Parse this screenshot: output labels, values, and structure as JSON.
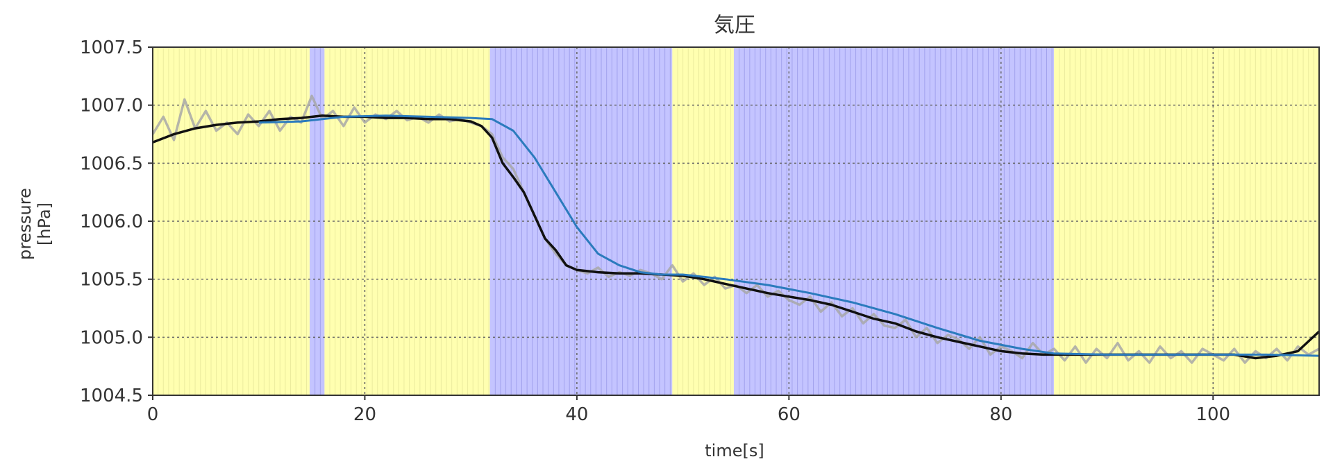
{
  "chart_data": {
    "type": "line",
    "title": "気圧",
    "xlabel": "time[s]",
    "ylabel_lines": [
      "pressure",
      "[hPa]"
    ],
    "xlim": [
      0,
      110
    ],
    "ylim": [
      1004.5,
      1007.5
    ],
    "xticks": [
      0,
      20,
      40,
      60,
      80,
      100
    ],
    "xtick_labels": [
      "0",
      "20",
      "40",
      "60",
      "80",
      "100"
    ],
    "yticks": [
      1004.5,
      1005.0,
      1005.5,
      1006.0,
      1006.5,
      1007.0,
      1007.5
    ],
    "ytick_labels": [
      "1004.5",
      "1005.0",
      "1005.5",
      "1006.0",
      "1006.5",
      "1007.0",
      "1007.5"
    ],
    "grid": true,
    "colors": {
      "band_yellow": "#ffffb0",
      "band_blue": "#c4c4ff",
      "raw": "#a8a8a8",
      "smoothed": "#111111",
      "trend": "#2b7bbd",
      "grid": "#666666"
    },
    "background_bands": [
      {
        "x0": 0,
        "x1": 14.8,
        "color": "yellow"
      },
      {
        "x0": 14.8,
        "x1": 16.2,
        "color": "blue"
      },
      {
        "x0": 16.2,
        "x1": 31.8,
        "color": "yellow"
      },
      {
        "x0": 31.8,
        "x1": 49.0,
        "color": "blue"
      },
      {
        "x0": 49.0,
        "x1": 54.8,
        "color": "yellow"
      },
      {
        "x0": 54.8,
        "x1": 85.0,
        "color": "blue"
      },
      {
        "x0": 85.0,
        "x1": 110.0,
        "color": "yellow"
      }
    ],
    "series": [
      {
        "role": "raw",
        "x": [
          0,
          1,
          2,
          3,
          4,
          5,
          6,
          7,
          8,
          9,
          10,
          11,
          12,
          13,
          14,
          15,
          16,
          17,
          18,
          19,
          20,
          21,
          22,
          23,
          24,
          25,
          26,
          27,
          28,
          29,
          30,
          31,
          32,
          33,
          34,
          35,
          36,
          37,
          38,
          39,
          40,
          41,
          42,
          43,
          44,
          45,
          46,
          47,
          48,
          49,
          50,
          51,
          52,
          53,
          54,
          55,
          56,
          57,
          58,
          59,
          60,
          61,
          62,
          63,
          64,
          65,
          66,
          67,
          68,
          69,
          70,
          71,
          72,
          73,
          74,
          75,
          76,
          77,
          78,
          79,
          80,
          81,
          82,
          83,
          84,
          85,
          86,
          87,
          88,
          89,
          90,
          91,
          92,
          93,
          94,
          95,
          96,
          97,
          98,
          99,
          100,
          101,
          102,
          103,
          104,
          105,
          106,
          107,
          108,
          109,
          110
        ],
        "y": [
          1006.75,
          1006.9,
          1006.7,
          1007.05,
          1006.8,
          1006.95,
          1006.78,
          1006.85,
          1006.75,
          1006.92,
          1006.82,
          1006.95,
          1006.78,
          1006.9,
          1006.85,
          1007.08,
          1006.88,
          1006.95,
          1006.82,
          1006.98,
          1006.85,
          1006.92,
          1006.88,
          1006.95,
          1006.87,
          1006.9,
          1006.85,
          1006.92,
          1006.86,
          1006.88,
          1006.85,
          1006.82,
          1006.75,
          1006.55,
          1006.45,
          1006.25,
          1006.05,
          1005.85,
          1005.72,
          1005.62,
          1005.58,
          1005.55,
          1005.6,
          1005.52,
          1005.56,
          1005.53,
          1005.58,
          1005.55,
          1005.5,
          1005.62,
          1005.48,
          1005.55,
          1005.45,
          1005.52,
          1005.42,
          1005.45,
          1005.38,
          1005.45,
          1005.35,
          1005.4,
          1005.32,
          1005.28,
          1005.35,
          1005.22,
          1005.3,
          1005.18,
          1005.25,
          1005.12,
          1005.2,
          1005.1,
          1005.08,
          1005.15,
          1005.0,
          1005.08,
          1004.95,
          1005.02,
          1004.98,
          1004.9,
          1005.0,
          1004.85,
          1004.92,
          1004.88,
          1004.82,
          1004.95,
          1004.85,
          1004.9,
          1004.8,
          1004.92,
          1004.78,
          1004.9,
          1004.82,
          1004.95,
          1004.8,
          1004.88,
          1004.78,
          1004.92,
          1004.82,
          1004.88,
          1004.78,
          1004.9,
          1004.85,
          1004.8,
          1004.9,
          1004.78,
          1004.88,
          1004.82,
          1004.9,
          1004.8,
          1004.92,
          1004.85,
          1004.9
        ]
      },
      {
        "role": "smoothed",
        "x": [
          0,
          2,
          4,
          6,
          8,
          10,
          12,
          14,
          16,
          18,
          20,
          22,
          24,
          26,
          28,
          30,
          31,
          32,
          33,
          34,
          35,
          36,
          37,
          38,
          39,
          40,
          42,
          44,
          46,
          48,
          50,
          52,
          54,
          56,
          58,
          60,
          62,
          64,
          66,
          68,
          70,
          72,
          74,
          76,
          78,
          80,
          82,
          84,
          86,
          88,
          90,
          92,
          94,
          96,
          98,
          100,
          102,
          104,
          106,
          108,
          110
        ],
        "y": [
          1006.68,
          1006.75,
          1006.8,
          1006.83,
          1006.85,
          1006.86,
          1006.88,
          1006.89,
          1006.91,
          1006.9,
          1006.9,
          1006.89,
          1006.89,
          1006.88,
          1006.88,
          1006.86,
          1006.82,
          1006.72,
          1006.5,
          1006.38,
          1006.25,
          1006.05,
          1005.85,
          1005.75,
          1005.62,
          1005.58,
          1005.56,
          1005.55,
          1005.55,
          1005.54,
          1005.53,
          1005.5,
          1005.46,
          1005.42,
          1005.38,
          1005.35,
          1005.32,
          1005.28,
          1005.22,
          1005.16,
          1005.12,
          1005.05,
          1005.0,
          1004.96,
          1004.92,
          1004.88,
          1004.86,
          1004.85,
          1004.85,
          1004.85,
          1004.85,
          1004.85,
          1004.85,
          1004.85,
          1004.85,
          1004.85,
          1004.85,
          1004.82,
          1004.84,
          1004.88,
          1005.05
        ]
      },
      {
        "role": "trend",
        "x": [
          10,
          14,
          18,
          22,
          26,
          30,
          32,
          34,
          36,
          38,
          40,
          42,
          44,
          46,
          48,
          50,
          54,
          58,
          62,
          66,
          70,
          74,
          78,
          82,
          85,
          90,
          95,
          100,
          105,
          110
        ],
        "y": [
          1006.85,
          1006.86,
          1006.9,
          1006.91,
          1006.9,
          1006.89,
          1006.88,
          1006.78,
          1006.55,
          1006.25,
          1005.95,
          1005.72,
          1005.62,
          1005.56,
          1005.54,
          1005.54,
          1005.5,
          1005.45,
          1005.38,
          1005.3,
          1005.2,
          1005.08,
          1004.97,
          1004.9,
          1004.86,
          1004.85,
          1004.85,
          1004.85,
          1004.85,
          1004.84
        ]
      }
    ]
  }
}
